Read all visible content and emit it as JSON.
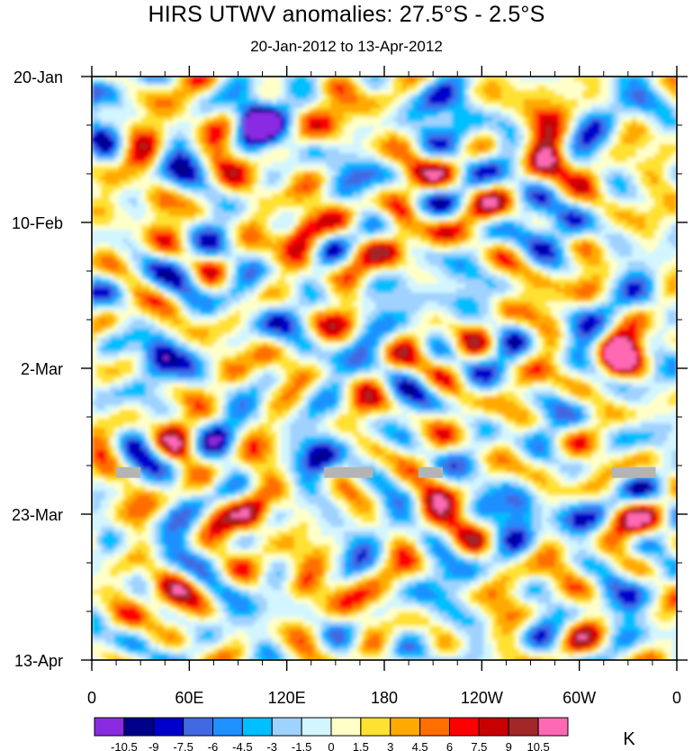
{
  "chart_data": {
    "type": "heatmap",
    "title": "HIRS UTWV anomalies: 27.5°S - 2.5°S",
    "subtitle": "20-Jan-2012 to 13-Apr-2012",
    "x_ticks": [
      "0",
      "60E",
      "120E",
      "180",
      "120W",
      "60W",
      "0"
    ],
    "x_tick_values": [
      0,
      60,
      120,
      180,
      240,
      300,
      360
    ],
    "xlim": [
      0,
      360
    ],
    "y_ticks": [
      "20-Jan",
      "10-Feb",
      "2-Mar",
      "23-Mar",
      "13-Apr"
    ],
    "y_tick_days": [
      0,
      21,
      42,
      63,
      84
    ],
    "ylim_days": [
      0,
      84
    ],
    "y_direction": "time increases downward",
    "colorbar": {
      "units": "K",
      "labels": [
        "-10.5",
        "-9",
        "-7.5",
        "-6",
        "-4.5",
        "-3",
        "-1.5",
        "0",
        "1.5",
        "3",
        "4.5",
        "6",
        "7.5",
        "9",
        "10.5"
      ],
      "colors": [
        "#8a2be2",
        "#00008b",
        "#0000cd",
        "#4169e1",
        "#1e90ff",
        "#00bfff",
        "#a0d2ff",
        "#d2f5ff",
        "#ffffc8",
        "#ffe132",
        "#ffaa00",
        "#ff6e00",
        "#ff0000",
        "#c80000",
        "#a02828",
        "#ff69b4"
      ]
    },
    "missing_data_segments": [
      {
        "lon_start": 15,
        "lon_end": 30,
        "day": 57
      },
      {
        "lon_start": 143,
        "lon_end": 173,
        "day": 57
      },
      {
        "lon_start": 201,
        "lon_end": 216,
        "day": 57
      },
      {
        "lon_start": 320,
        "lon_end": 347,
        "day": 57
      }
    ],
    "features": [
      {
        "lon": 100,
        "day": 63,
        "value": 11,
        "note": "strong positive anomaly"
      },
      {
        "lon": 325,
        "day": 40,
        "value": 11,
        "note": "strong positive anomaly"
      },
      {
        "lon": 280,
        "day": 12,
        "value": 11,
        "note": "positive anomaly"
      },
      {
        "lon": 100,
        "day": 6,
        "value": -10,
        "note": "negative anomaly"
      },
      {
        "lon": 140,
        "day": 55,
        "value": -9,
        "note": "negative anomaly"
      },
      {
        "lon": 265,
        "day": 62,
        "value": -9,
        "note": "negative anomaly"
      },
      {
        "lon": 40,
        "day": 40,
        "value": -8,
        "note": "negative anomaly"
      },
      {
        "lon": 60,
        "day": 30,
        "value": -7,
        "note": "negative anomaly"
      },
      {
        "lon": 295,
        "day": 22,
        "value": -6,
        "note": "negative anomaly"
      },
      {
        "lon": 130,
        "day": 22,
        "value": 8,
        "note": "positive anomaly"
      },
      {
        "lon": 160,
        "day": 26,
        "value": 7,
        "note": "positive anomaly"
      },
      {
        "lon": 190,
        "day": 20,
        "value": 7,
        "note": "positive anomaly"
      },
      {
        "lon": 20,
        "day": 74,
        "value": 8,
        "note": "positive anomaly"
      },
      {
        "lon": 130,
        "day": 74,
        "value": 8,
        "note": "positive anomaly"
      },
      {
        "lon": 210,
        "day": 60,
        "value": 6,
        "note": "positive anomaly"
      },
      {
        "lon": 40,
        "day": 18,
        "value": 7,
        "note": "positive anomaly"
      },
      {
        "lon": 170,
        "day": 32,
        "value": -5,
        "note": "negative anomaly"
      },
      {
        "lon": 230,
        "day": 8,
        "value": -6,
        "note": "negative anomaly"
      }
    ]
  }
}
